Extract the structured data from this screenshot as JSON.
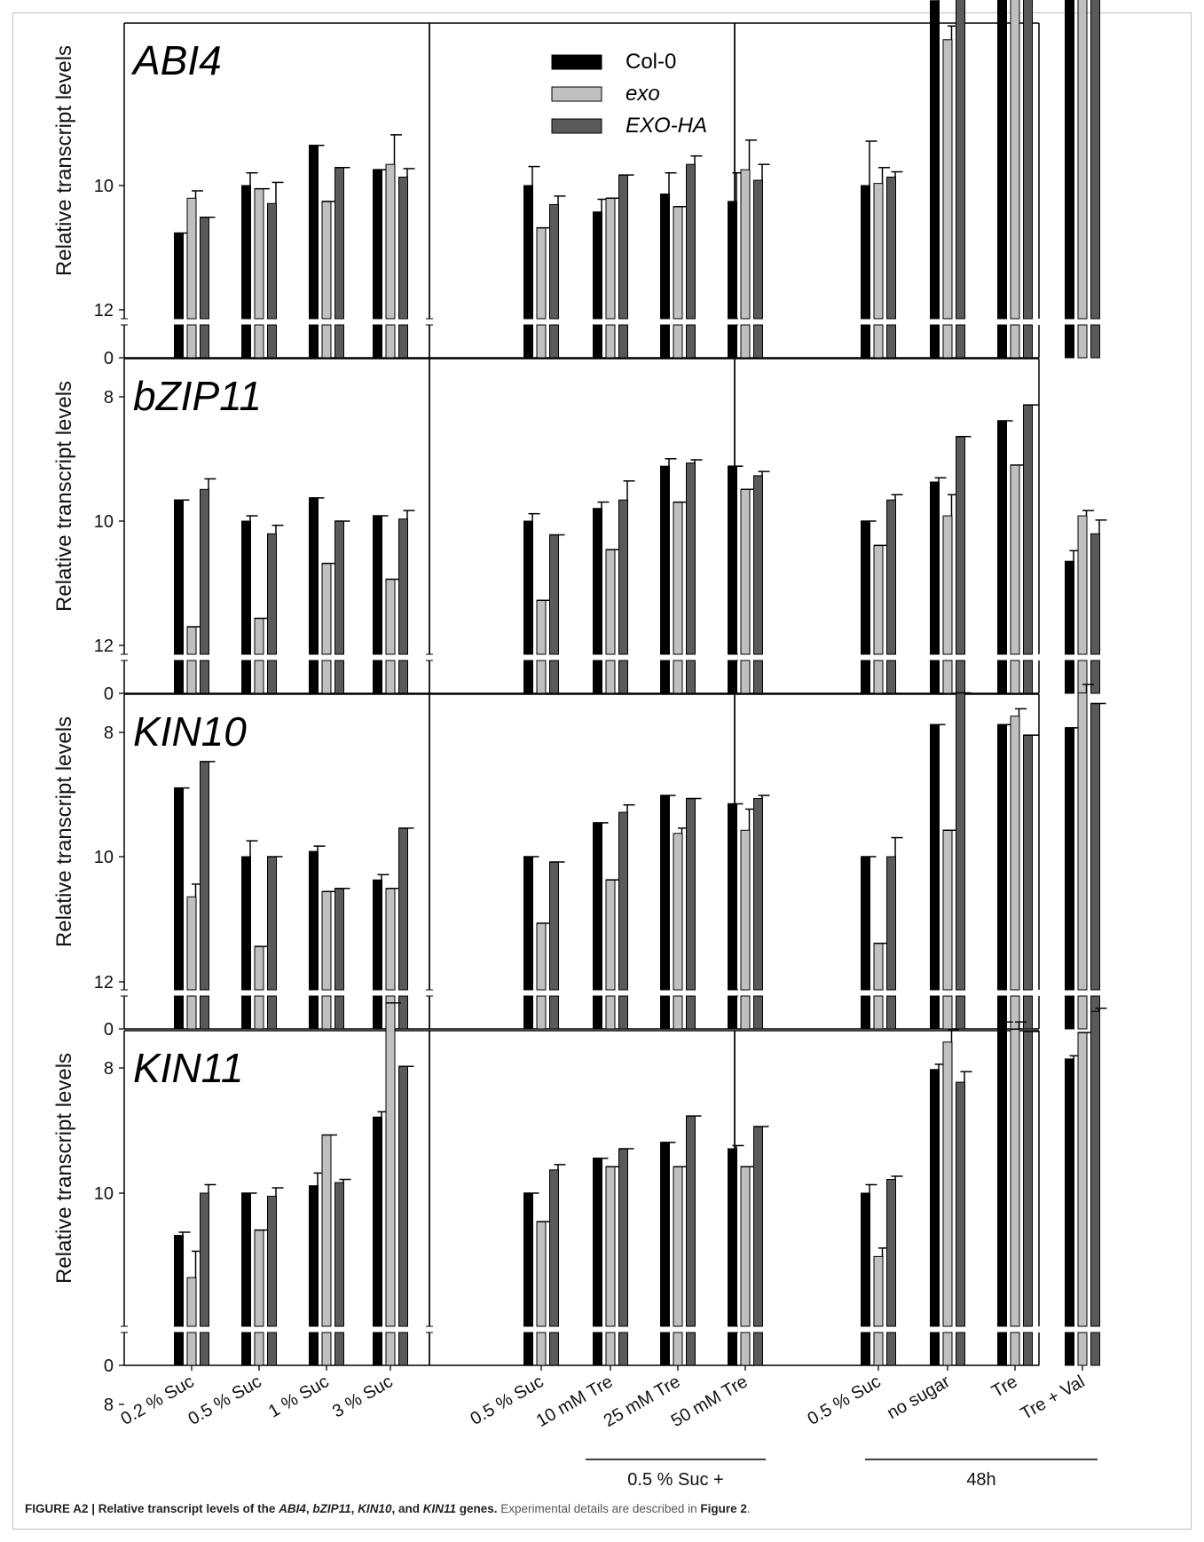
{
  "chart_data": [
    {
      "type": "bar",
      "gene": "ABI4",
      "ylabel": "Relative transcript levels",
      "yticks": [
        0,
        8,
        10,
        12
      ],
      "ylim": [
        7.3,
        13.0
      ],
      "axis_break": true,
      "groups": [
        {
          "categories": [
            "0.2 % Suc",
            "0.5 % Suc",
            "1 % Suc",
            "3 % Suc"
          ],
          "series": [
            {
              "name": "Col-0",
              "values": [
                9.55,
                10.0,
                10.38,
                10.15
              ],
              "errors": [
                0.0,
                0.12,
                0.0,
                0.0
              ]
            },
            {
              "name": "exo",
              "values": [
                9.88,
                9.97,
                9.85,
                10.2
              ],
              "errors": [
                0.07,
                0.0,
                0.0,
                0.28
              ]
            },
            {
              "name": "EXO-HA",
              "values": [
                9.7,
                9.83,
                10.17,
                10.08
              ],
              "errors": [
                0.0,
                0.2,
                0.0,
                0.08
              ]
            }
          ]
        },
        {
          "categories": [
            "0.5 % Suc",
            "10 mM Tre",
            "25 mM Tre",
            "50 mM Tre"
          ],
          "series": [
            {
              "name": "Col-0",
              "values": [
                10.0,
                9.75,
                9.92,
                9.85
              ],
              "errors": [
                0.18,
                0.12,
                0.2,
                0.27
              ]
            },
            {
              "name": "exo",
              "values": [
                9.6,
                9.88,
                9.8,
                10.15
              ],
              "errors": [
                0.0,
                0.0,
                0.0,
                0.28
              ]
            },
            {
              "name": "EXO-HA",
              "values": [
                9.82,
                10.1,
                10.2,
                10.05
              ],
              "errors": [
                0.08,
                0.0,
                0.08,
                0.15
              ]
            }
          ]
        },
        {
          "categories": [
            "0.5 % Suc",
            "no sugar",
            "Tre",
            "Tre + Val"
          ],
          "series": [
            {
              "name": "Col-0",
              "values": [
                10.0,
                11.75,
                12.5,
                11.77
              ],
              "errors": [
                0.42,
                0.28,
                0.1,
                0.23
              ]
            },
            {
              "name": "exo",
              "values": [
                10.02,
                11.38,
                12.42,
                11.95
              ],
              "errors": [
                0.15,
                0.13,
                0.15,
                0.1
              ]
            },
            {
              "name": "EXO-HA",
              "values": [
                10.08,
                11.85,
                12.6,
                11.9
              ],
              "errors": [
                0.05,
                0.07,
                0.07,
                0.0
              ]
            }
          ]
        }
      ]
    },
    {
      "type": "bar",
      "gene": "bZIP11",
      "ylabel": "Relative transcript levels",
      "yticks": [
        0,
        8,
        10,
        12
      ],
      "ylim": [
        7.3,
        13.0
      ],
      "axis_break": true,
      "groups": [
        {
          "categories": [
            "0.2 % Suc",
            "0.5 % Suc",
            "1 % Suc",
            "3 % Suc"
          ],
          "series": [
            {
              "name": "Col-0",
              "values": [
                10.2,
                10.0,
                10.22,
                10.05
              ],
              "errors": [
                0.0,
                0.05,
                0.0,
                0.0
              ]
            },
            {
              "name": "exo",
              "values": [
                9.0,
                9.08,
                9.6,
                9.45
              ],
              "errors": [
                0.0,
                0.0,
                0.0,
                0.0
              ]
            },
            {
              "name": "EXO-HA",
              "values": [
                10.3,
                9.88,
                10.0,
                10.02
              ],
              "errors": [
                0.1,
                0.08,
                0.0,
                0.08
              ]
            }
          ]
        },
        {
          "categories": [
            "0.5 % Suc",
            "10 mM Tre",
            "25 mM Tre",
            "50 mM Tre"
          ],
          "series": [
            {
              "name": "Col-0",
              "values": [
                10.0,
                10.12,
                10.52,
                10.52
              ],
              "errors": [
                0.07,
                0.06,
                0.07,
                0.0
              ]
            },
            {
              "name": "exo",
              "values": [
                9.25,
                9.73,
                10.18,
                10.3
              ],
              "errors": [
                0.0,
                0.0,
                0.0,
                0.0
              ]
            },
            {
              "name": "EXO-HA",
              "values": [
                9.87,
                10.2,
                10.55,
                10.43
              ],
              "errors": [
                0.0,
                0.18,
                0.03,
                0.04
              ]
            }
          ]
        },
        {
          "categories": [
            "0.5 % Suc",
            "no sugar",
            "Tre",
            "Tre + Val"
          ],
          "series": [
            {
              "name": "Col-0",
              "values": [
                10.0,
                10.37,
                10.95,
                9.62
              ],
              "errors": [
                0.0,
                0.04,
                0.0,
                0.1
              ]
            },
            {
              "name": "exo",
              "values": [
                9.77,
                10.05,
                10.53,
                10.05
              ],
              "errors": [
                0.0,
                0.2,
                0.0,
                0.05
              ]
            },
            {
              "name": "EXO-HA",
              "values": [
                10.2,
                10.8,
                11.1,
                9.88
              ],
              "errors": [
                0.05,
                0.0,
                0.0,
                0.13
              ]
            }
          ]
        }
      ]
    },
    {
      "type": "bar",
      "gene": "KIN10",
      "ylabel": "Relative transcript levels",
      "yticks": [
        0,
        8,
        10,
        12
      ],
      "ylim": [
        7.3,
        13.0
      ],
      "axis_break": true,
      "groups": [
        {
          "categories": [
            "0.2 % Suc",
            "0.5 % Suc",
            "1 % Suc",
            "3 % Suc"
          ],
          "series": [
            {
              "name": "Col-0",
              "values": [
                10.65,
                10.0,
                10.05,
                9.78
              ],
              "errors": [
                0.0,
                0.15,
                0.05,
                0.05
              ]
            },
            {
              "name": "exo",
              "values": [
                9.62,
                9.15,
                9.67,
                9.7
              ],
              "errors": [
                0.12,
                0.0,
                0.0,
                0.0
              ]
            },
            {
              "name": "EXO-HA",
              "values": [
                10.9,
                10.0,
                9.7,
                10.27
              ],
              "errors": [
                0.0,
                0.0,
                0.0,
                0.0
              ]
            }
          ]
        },
        {
          "categories": [
            "0.5 % Suc",
            "10 mM Tre",
            "25 mM Tre",
            "50 mM Tre"
          ],
          "series": [
            {
              "name": "Col-0",
              "values": [
                10.0,
                10.32,
                10.58,
                10.5
              ],
              "errors": [
                0.0,
                0.0,
                0.0,
                0.0
              ]
            },
            {
              "name": "exo",
              "values": [
                9.37,
                9.78,
                10.22,
                10.25
              ],
              "errors": [
                0.0,
                0.0,
                0.05,
                0.2
              ]
            },
            {
              "name": "EXO-HA",
              "values": [
                9.95,
                10.42,
                10.55,
                10.55
              ],
              "errors": [
                0.0,
                0.07,
                0.0,
                0.03
              ]
            }
          ]
        },
        {
          "categories": [
            "0.5 % Suc",
            "no sugar",
            "Tre",
            "Tre + Val"
          ],
          "series": [
            {
              "name": "Col-0",
              "values": [
                10.0,
                11.25,
                11.25,
                11.22
              ],
              "errors": [
                0.0,
                0.0,
                0.0,
                0.0
              ]
            },
            {
              "name": "exo",
              "values": [
                9.18,
                10.25,
                11.33,
                11.55
              ],
              "errors": [
                0.0,
                0.0,
                0.07,
                0.08
              ]
            },
            {
              "name": "EXO-HA",
              "values": [
                10.0,
                11.55,
                11.15,
                11.45
              ],
              "errors": [
                0.18,
                0.0,
                0.0,
                0.0
              ]
            }
          ]
        }
      ]
    },
    {
      "type": "bar",
      "gene": "KIN11",
      "ylabel": "Relative transcript levels",
      "yticks": [
        0,
        8,
        10,
        12
      ],
      "ylim": [
        7.3,
        13.0
      ],
      "axis_break": true,
      "groups": [
        {
          "categories": [
            "0.2 % Suc",
            "0.5 % Suc",
            "1 % Suc",
            "3 % Suc"
          ],
          "series": [
            {
              "name": "Col-0",
              "values": [
                9.6,
                10.0,
                10.07,
                10.72
              ],
              "errors": [
                0.03,
                0.0,
                0.12,
                0.05
              ]
            },
            {
              "name": "exo",
              "values": [
                9.2,
                9.65,
                10.55,
                11.8
              ],
              "errors": [
                0.25,
                0.0,
                0.0,
                0.0
              ]
            },
            {
              "name": "EXO-HA",
              "values": [
                10.0,
                9.97,
                10.1,
                11.2
              ],
              "errors": [
                0.08,
                0.08,
                0.03,
                0.0
              ]
            }
          ]
        },
        {
          "categories": [
            "0.5 % Suc",
            "10 mM Tre",
            "25 mM Tre",
            "50 mM Tre"
          ],
          "series": [
            {
              "name": "Col-0",
              "values": [
                10.0,
                10.33,
                10.48,
                10.42
              ],
              "errors": [
                0.0,
                0.0,
                0.0,
                0.03
              ]
            },
            {
              "name": "exo",
              "values": [
                9.73,
                10.25,
                10.25,
                10.25
              ],
              "errors": [
                0.0,
                0.0,
                0.0,
                0.0
              ]
            },
            {
              "name": "EXO-HA",
              "values": [
                10.22,
                10.42,
                10.73,
                10.63
              ],
              "errors": [
                0.05,
                0.0,
                0.0,
                0.0
              ]
            }
          ]
        },
        {
          "categories": [
            "0.5 % Suc",
            "no sugar",
            "Tre",
            "Tre + Val"
          ],
          "series": [
            {
              "name": "Col-0",
              "values": [
                10.0,
                11.17,
                11.62,
                11.27
              ],
              "errors": [
                0.08,
                0.05,
                0.0,
                0.03
              ]
            },
            {
              "name": "exo",
              "values": [
                9.4,
                11.43,
                11.55,
                11.52
              ],
              "errors": [
                0.08,
                0.12,
                0.07,
                0.0
              ]
            },
            {
              "name": "EXO-HA",
              "values": [
                10.13,
                11.05,
                11.53,
                11.72
              ],
              "errors": [
                0.03,
                0.1,
                0.0,
                0.03
              ]
            }
          ]
        }
      ]
    }
  ],
  "legend": [
    {
      "label": "Col-0",
      "color": "#000000",
      "italic": false
    },
    {
      "label": "exo",
      "color": "#c0c0c0",
      "italic": true
    },
    {
      "label": "EXO-HA",
      "color": "#5a5a5a",
      "italic": true
    }
  ],
  "group_labels": [
    {
      "label": "0.5 % Suc +",
      "under_group": 1
    },
    {
      "label": "48h",
      "under_group": 2
    }
  ],
  "caption": {
    "prefix": "FIGURE A2 | Relative transcript levels of the ",
    "gene1": "ABI4",
    "sep1": ", ",
    "gene2": "bZIP11",
    "sep2": ", ",
    "gene3": "KIN10",
    "sep3": ", and ",
    "gene4": "KIN11",
    "suffix": " genes.",
    "details_prefix": " Experimental details are described in ",
    "details_ref": "Figure 2",
    "details_end": "."
  }
}
